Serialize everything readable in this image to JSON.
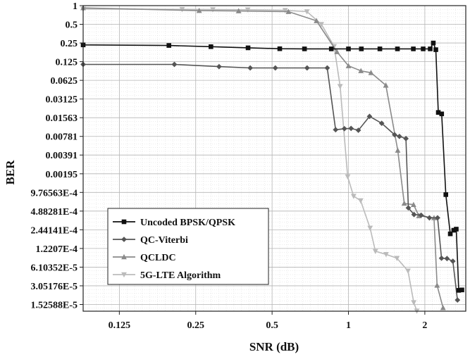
{
  "chart_data": {
    "type": "line",
    "xlabel": "SNR (dB)",
    "ylabel": "BER",
    "x_scale": "log2",
    "y_scale": "log2",
    "xlim": [
      0.09,
      2.9
    ],
    "ylim": [
      1.19e-05,
      1.0
    ],
    "grid": true,
    "legend_position": "bottom-left",
    "x_ticks": [
      {
        "value": 0.125,
        "label": "0.125"
      },
      {
        "value": 0.25,
        "label": "0.25"
      },
      {
        "value": 0.5,
        "label": "0.5"
      },
      {
        "value": 1,
        "label": "1"
      },
      {
        "value": 2,
        "label": "2"
      }
    ],
    "y_ticks": [
      {
        "value": 1,
        "label": "1"
      },
      {
        "value": 0.5,
        "label": "0.5"
      },
      {
        "value": 0.25,
        "label": "0.25"
      },
      {
        "value": 0.125,
        "label": "0.125"
      },
      {
        "value": 0.0625,
        "label": "0.0625"
      },
      {
        "value": 0.03125,
        "label": "0.03125"
      },
      {
        "value": 0.01563,
        "label": "0.01563"
      },
      {
        "value": 0.00781,
        "label": "0.00781"
      },
      {
        "value": 0.00391,
        "label": "0.00391"
      },
      {
        "value": 0.00195,
        "label": "0.00195"
      },
      {
        "value": 0.000976563,
        "label": "9.76563E-4"
      },
      {
        "value": 0.000488281,
        "label": "4.88281E-4"
      },
      {
        "value": 0.000244141,
        "label": "2.44141E-4"
      },
      {
        "value": 0.00012207,
        "label": "1.2207E-4"
      },
      {
        "value": 6.10352e-05,
        "label": "6.10352E-5"
      },
      {
        "value": 3.05176e-05,
        "label": "3.05176E-5"
      },
      {
        "value": 1.52588e-05,
        "label": "1.52588E-5"
      }
    ],
    "series": [
      {
        "name": "Uncoded BPSK/QPSK",
        "color": "#111111",
        "marker": "square",
        "points": [
          [
            0.09,
            0.233
          ],
          [
            0.196,
            0.228
          ],
          [
            0.287,
            0.218
          ],
          [
            0.402,
            0.209
          ],
          [
            0.536,
            0.202
          ],
          [
            0.671,
            0.201
          ],
          [
            0.856,
            0.201
          ],
          [
            1.0,
            0.201
          ],
          [
            1.124,
            0.201
          ],
          [
            1.33,
            0.201
          ],
          [
            1.56,
            0.201
          ],
          [
            1.802,
            0.201
          ],
          [
            1.97,
            0.201
          ],
          [
            2.1,
            0.201
          ],
          [
            2.16,
            0.25
          ],
          [
            2.21,
            0.195
          ],
          [
            2.26,
            0.019
          ],
          [
            2.33,
            0.018
          ],
          [
            2.42,
            0.0009
          ],
          [
            2.52,
            0.00021
          ],
          [
            2.6,
            0.00024
          ],
          [
            2.66,
            0.00025
          ],
          [
            2.72,
            2.58e-05
          ],
          [
            2.8,
            2.62e-05
          ]
        ]
      },
      {
        "name": "QC-Viterbi",
        "color": "#555555",
        "marker": "diamond",
        "points": [
          [
            0.09,
            0.113
          ],
          [
            0.206,
            0.113
          ],
          [
            0.309,
            0.104
          ],
          [
            0.41,
            0.099
          ],
          [
            0.515,
            0.099
          ],
          [
            0.687,
            0.099
          ],
          [
            0.825,
            0.099
          ],
          [
            0.89,
            0.01
          ],
          [
            0.964,
            0.0104
          ],
          [
            1.024,
            0.0105
          ],
          [
            1.094,
            0.0098
          ],
          [
            1.211,
            0.0164
          ],
          [
            1.352,
            0.0127
          ],
          [
            1.52,
            0.0083
          ],
          [
            1.588,
            0.0078
          ],
          [
            1.685,
            0.0072
          ],
          [
            1.722,
            0.00055
          ],
          [
            1.813,
            0.00043
          ],
          [
            1.934,
            0.00042
          ],
          [
            2.085,
            0.00038
          ],
          [
            2.245,
            0.00038
          ],
          [
            2.327,
            8.5e-05
          ],
          [
            2.446,
            8.4e-05
          ],
          [
            2.58,
            7.6e-05
          ],
          [
            2.69,
            1.8e-05
          ]
        ]
      },
      {
        "name": "QCLDC",
        "color": "#8a8a8a",
        "marker": "triangle",
        "points": [
          [
            0.09,
            0.919
          ],
          [
            0.258,
            0.83
          ],
          [
            0.369,
            0.82
          ],
          [
            0.58,
            0.8
          ],
          [
            0.748,
            0.57
          ],
          [
            0.901,
            0.18
          ],
          [
            1.0,
            0.107
          ],
          [
            1.12,
            0.089
          ],
          [
            1.227,
            0.083
          ],
          [
            1.404,
            0.052
          ],
          [
            1.564,
            0.00465
          ],
          [
            1.659,
            0.00065
          ],
          [
            1.805,
            0.00062
          ],
          [
            1.894,
            0.00041
          ],
          [
            2.174,
            0.00038
          ],
          [
            2.235,
            3.1e-05
          ],
          [
            2.36,
            1.35e-05
          ]
        ]
      },
      {
        "name": "5G-LTE Algorithm",
        "color": "#bbbbbb",
        "marker": "triangle-down",
        "points": [
          [
            0.09,
            0.882
          ],
          [
            0.221,
            0.87
          ],
          [
            0.292,
            0.866
          ],
          [
            0.401,
            0.86
          ],
          [
            0.563,
            0.84
          ],
          [
            0.686,
            0.8
          ],
          [
            0.782,
            0.5
          ],
          [
            0.878,
            0.22
          ],
          [
            0.927,
            0.05
          ],
          [
            0.993,
            0.00175
          ],
          [
            1.048,
            0.00085
          ],
          [
            1.117,
            0.00072
          ],
          [
            1.217,
            0.00026
          ],
          [
            1.277,
            0.00011
          ],
          [
            1.407,
            9.8e-05
          ],
          [
            1.553,
            8.5e-05
          ],
          [
            1.717,
            5.3e-05
          ],
          [
            1.809,
            1.64e-05
          ],
          [
            1.86,
            1.2e-05
          ]
        ]
      }
    ]
  }
}
